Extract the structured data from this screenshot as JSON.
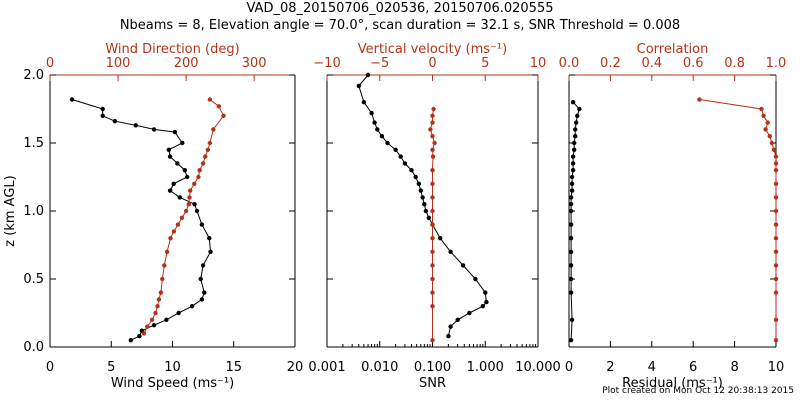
{
  "title_line1": "VAD_08_20150706_020536, 20150706.020555",
  "title_line2": "Nbeams = 8, Elevation angle = 70.0°, scan duration = 32.1 s, SNR Threshold = 0.008",
  "footer": "Plot created on Mon Oct 12 20:38:13 2015",
  "colors": {
    "black_series": "#000000",
    "red_series": "#b5321a",
    "axis": "#000000"
  },
  "chart_data": [
    {
      "type": "line",
      "panel": "left",
      "ylabel": "z (km AGL)",
      "ylim": [
        0.0,
        2.0
      ],
      "yticks": [
        "0.0",
        "0.5",
        "1.0",
        "1.5",
        "2.0"
      ],
      "ytick_values": [
        0.0,
        0.5,
        1.0,
        1.5,
        2.0
      ],
      "x_bottom": {
        "label": "Wind Speed (ms⁻¹)",
        "lim": [
          0,
          20
        ],
        "scale": "linear",
        "ticks": [
          "0",
          "5",
          "10",
          "15",
          "20"
        ],
        "tick_values": [
          0,
          5,
          10,
          15,
          20
        ]
      },
      "x_top": {
        "label": "Wind Direction (deg)",
        "lim": [
          0,
          360
        ],
        "scale": "linear",
        "ticks": [
          "0",
          "100",
          "200",
          "300"
        ],
        "tick_values": [
          0,
          100,
          200,
          300
        ]
      },
      "series": [
        {
          "axis": "bottom",
          "color": "black",
          "x": [
            1.8,
            4.3,
            4.3,
            5.3,
            7.0,
            8.5,
            10.2,
            10.8,
            9.7,
            9.8,
            10.4,
            11.0,
            11.2,
            10.1,
            9.8,
            10.6,
            11.8,
            12.0,
            12.4,
            13.0,
            13.1,
            12.5,
            12.3,
            12.6,
            12.4,
            11.6,
            10.5,
            9.5,
            8.5,
            7.5,
            7.3,
            6.6
          ],
          "y": [
            1.82,
            1.75,
            1.7,
            1.66,
            1.63,
            1.6,
            1.58,
            1.5,
            1.45,
            1.4,
            1.35,
            1.3,
            1.25,
            1.2,
            1.15,
            1.1,
            1.05,
            1.0,
            0.9,
            0.8,
            0.7,
            0.6,
            0.5,
            0.4,
            0.35,
            0.3,
            0.25,
            0.2,
            0.16,
            0.12,
            0.08,
            0.05
          ]
        },
        {
          "axis": "top",
          "color": "red",
          "x": [
            235,
            248,
            255,
            240,
            235,
            232,
            228,
            225,
            220,
            218,
            212,
            206,
            205,
            204,
            200,
            194,
            188,
            182,
            177,
            172,
            168,
            165,
            163,
            160,
            158,
            155,
            150,
            143,
            138
          ],
          "y": [
            1.82,
            1.77,
            1.7,
            1.6,
            1.5,
            1.45,
            1.4,
            1.35,
            1.3,
            1.25,
            1.2,
            1.15,
            1.1,
            1.05,
            1.0,
            0.95,
            0.9,
            0.85,
            0.8,
            0.7,
            0.6,
            0.5,
            0.4,
            0.35,
            0.3,
            0.25,
            0.2,
            0.15,
            0.1
          ]
        }
      ]
    },
    {
      "type": "line",
      "panel": "middle",
      "ylim": [
        0.0,
        2.0
      ],
      "x_bottom": {
        "label": "SNR",
        "lim": [
          0.001,
          10.0
        ],
        "scale": "log",
        "ticks": [
          "0.001",
          "0.010",
          "0.100",
          "1.000",
          "10.000"
        ],
        "tick_values": [
          0.001,
          0.01,
          0.1,
          1.0,
          10.0
        ]
      },
      "x_top": {
        "label": "Vertical velocity (ms⁻¹)",
        "lim": [
          -10,
          10
        ],
        "scale": "linear",
        "ticks": [
          "−10",
          "−5",
          "0",
          "5",
          "10"
        ],
        "tick_values": [
          -10,
          -5,
          0,
          5,
          10
        ]
      },
      "series": [
        {
          "axis": "bottom",
          "color": "black",
          "x": [
            0.006,
            0.004,
            0.005,
            0.007,
            0.008,
            0.009,
            0.011,
            0.014,
            0.02,
            0.025,
            0.03,
            0.04,
            0.048,
            0.055,
            0.06,
            0.065,
            0.07,
            0.075,
            0.085,
            0.1,
            0.14,
            0.22,
            0.38,
            0.65,
            1.0,
            1.05,
            0.9,
            0.5,
            0.3,
            0.22,
            0.2
          ],
          "y": [
            2.0,
            1.92,
            1.8,
            1.72,
            1.65,
            1.6,
            1.55,
            1.5,
            1.45,
            1.4,
            1.35,
            1.3,
            1.25,
            1.2,
            1.15,
            1.1,
            1.05,
            1.0,
            0.95,
            0.9,
            0.8,
            0.7,
            0.6,
            0.5,
            0.4,
            0.33,
            0.3,
            0.25,
            0.2,
            0.15,
            0.08
          ]
        },
        {
          "axis": "top",
          "color": "red",
          "x": [
            0.1,
            0.0,
            0.0,
            -0.2,
            0.0,
            0.2,
            0.0,
            0.05,
            0.0,
            0.0,
            0.0,
            0.0,
            0.0,
            0.0,
            0.0,
            0.0,
            0.0,
            0.0,
            0.0,
            0.0
          ],
          "y": [
            1.75,
            1.7,
            1.65,
            1.6,
            1.55,
            1.5,
            1.45,
            1.4,
            1.3,
            1.2,
            1.1,
            1.0,
            0.9,
            0.8,
            0.7,
            0.6,
            0.5,
            0.4,
            0.3,
            0.05
          ]
        }
      ]
    },
    {
      "type": "line",
      "panel": "right",
      "ylim": [
        0.0,
        2.0
      ],
      "x_bottom": {
        "label": "Residual (ms⁻¹)",
        "lim": [
          0,
          10
        ],
        "scale": "linear",
        "ticks": [
          "0",
          "2",
          "4",
          "6",
          "8",
          "10"
        ],
        "tick_values": [
          0,
          2,
          4,
          6,
          8,
          10
        ]
      },
      "x_top": {
        "label": "Correlation",
        "lim": [
          0.0,
          1.0
        ],
        "scale": "linear",
        "ticks": [
          "0.0",
          "0.2",
          "0.4",
          "0.6",
          "0.8",
          "1.0"
        ],
        "tick_values": [
          0.0,
          0.2,
          0.4,
          0.6,
          0.8,
          1.0
        ]
      },
      "series": [
        {
          "axis": "bottom",
          "color": "black",
          "x": [
            0.2,
            0.5,
            0.4,
            0.35,
            0.3,
            0.3,
            0.25,
            0.25,
            0.2,
            0.2,
            0.2,
            0.15,
            0.15,
            0.15,
            0.1,
            0.1,
            0.1,
            0.1,
            0.1,
            0.1,
            0.1,
            0.1,
            0.1,
            0.15,
            0.1
          ],
          "y": [
            1.8,
            1.75,
            1.7,
            1.65,
            1.6,
            1.55,
            1.5,
            1.45,
            1.4,
            1.35,
            1.3,
            1.25,
            1.2,
            1.15,
            1.1,
            1.05,
            1.0,
            0.9,
            0.8,
            0.7,
            0.6,
            0.5,
            0.4,
            0.2,
            0.05
          ]
        },
        {
          "axis": "top",
          "color": "red",
          "x": [
            0.63,
            0.93,
            0.94,
            0.96,
            0.95,
            0.97,
            0.98,
            0.99,
            1.0,
            1.0,
            1.0,
            1.0,
            1.0,
            1.0,
            1.0,
            1.0,
            1.0,
            1.0,
            1.0,
            1.0,
            1.0,
            1.0
          ],
          "y": [
            1.82,
            1.75,
            1.7,
            1.65,
            1.6,
            1.55,
            1.5,
            1.45,
            1.4,
            1.35,
            1.3,
            1.2,
            1.1,
            1.0,
            0.9,
            0.8,
            0.7,
            0.6,
            0.5,
            0.4,
            0.2,
            0.05
          ]
        }
      ]
    }
  ]
}
